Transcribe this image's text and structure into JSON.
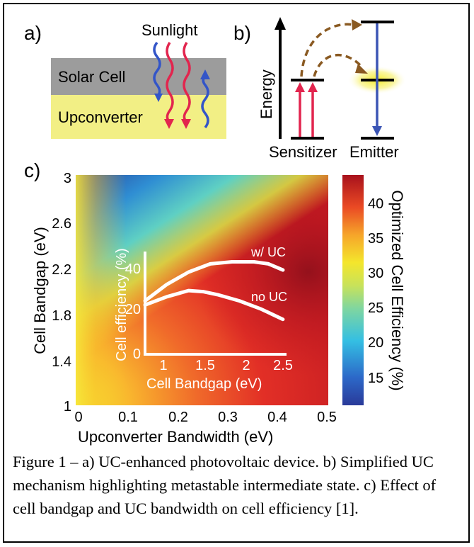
{
  "panel_a": {
    "label": "a)",
    "sunlight": "Sunlight",
    "solar_cell": "Solar Cell",
    "upconverter": "Upconverter",
    "colors": {
      "cell": "#9c9c9c",
      "upconverter": "#f2ef85",
      "blue_ray": "#3355c8",
      "red_ray": "#e2254e"
    }
  },
  "panel_b": {
    "label": "b)",
    "energy_axis": "Energy",
    "sensitizer": "Sensitizer",
    "emitter": "Emitter",
    "colors": {
      "red": "#e2254e",
      "blue": "#3b55b5",
      "arrow": "#8a5a22",
      "glow": "#f7ef4a"
    }
  },
  "panel_c": {
    "label": "c)",
    "colorbar": {
      "title": "Optimized Cell Efficiency (%)",
      "ticks": [
        "15",
        "20",
        "25",
        "30",
        "35",
        "40"
      ],
      "range": [
        11,
        44
      ]
    }
  },
  "chart_data": [
    {
      "type": "heatmap",
      "xlabel": "Upconverter Bandwidth (eV)",
      "ylabel": "Cell Bandgap (eV)",
      "xlim": [
        0,
        0.5
      ],
      "ylim": [
        1,
        3
      ],
      "x_ticks": [
        "0",
        "0.1",
        "0.2",
        "0.3",
        "0.4",
        "0.5"
      ],
      "y_ticks": [
        "1",
        "1.4",
        "1.8",
        "2.2",
        "2.6",
        "3"
      ],
      "colorbar_label": "Optimized Cell Efficiency (%)"
    },
    {
      "type": "line",
      "xlabel": "Cell Bandgap (eV)",
      "ylabel": "Cell efficiency (%)",
      "xlim": [
        0.6,
        2.55
      ],
      "ylim": [
        0,
        50
      ],
      "x_ticks": [
        "1",
        "1.5",
        "2",
        "2.5"
      ],
      "y_ticks": [
        "0",
        "20",
        "40"
      ],
      "series": [
        {
          "name": "w/ UC",
          "x": [
            0.6,
            0.9,
            1.2,
            1.5,
            1.8,
            2.1,
            2.3,
            2.5
          ],
          "y": [
            26,
            34,
            40,
            44,
            45,
            45,
            44,
            41
          ]
        },
        {
          "name": "no UC",
          "x": [
            0.6,
            0.9,
            1.2,
            1.4,
            1.6,
            1.9,
            2.2,
            2.5
          ],
          "y": [
            24,
            28,
            31,
            30.5,
            29,
            26,
            22,
            17
          ]
        }
      ]
    }
  ],
  "caption": "Figure 1 – a) UC-enhanced photovoltaic device. b) Simplified UC mechanism highlighting metastable intermediate state. c) Effect of cell bandgap and UC bandwidth on cell efficiency [1]."
}
